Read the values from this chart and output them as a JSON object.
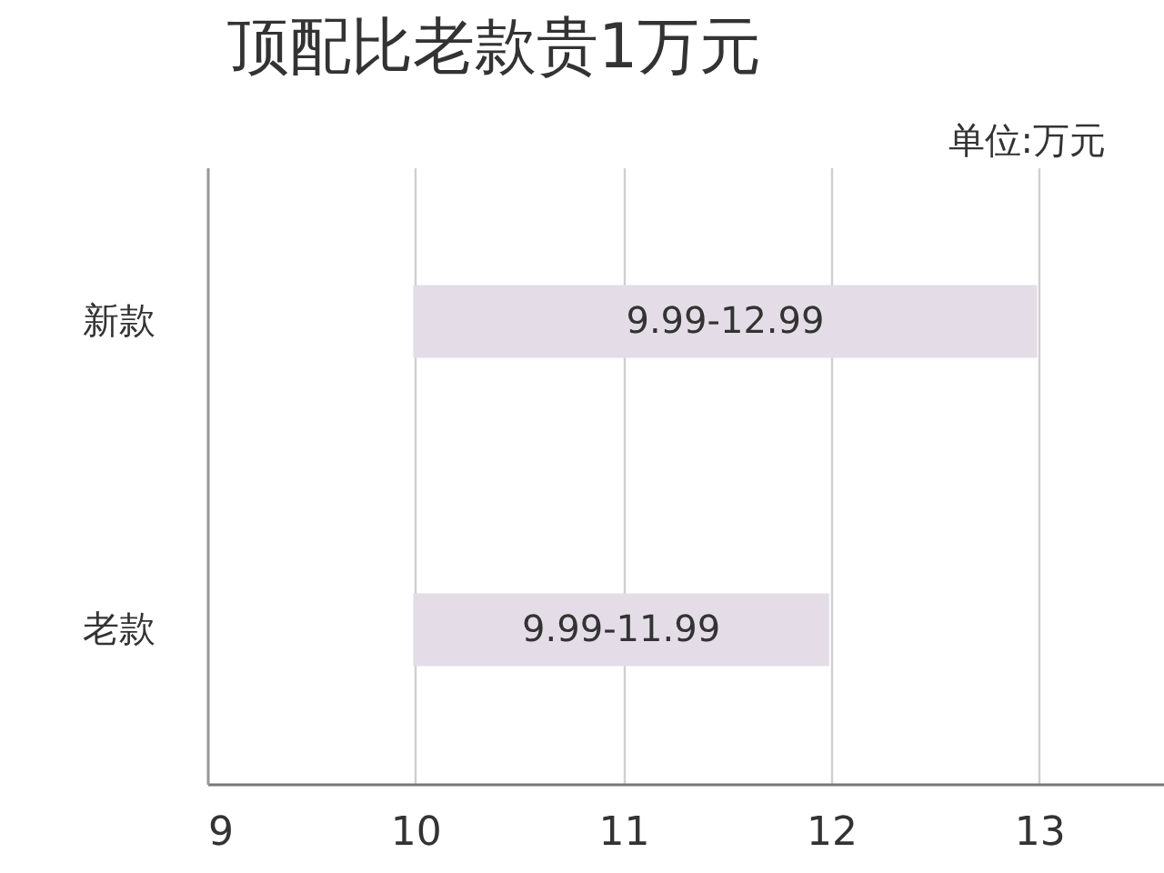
{
  "chart_data": {
    "type": "bar",
    "title": "顶配比老款贵1万元",
    "annotations": [
      "单位:万元"
    ],
    "orientation": "horizontal",
    "categories": [
      "新款",
      "老款"
    ],
    "base": [
      9.99,
      9.99
    ],
    "values": [
      3,
      2
    ],
    "color": "#e4dde7",
    "value_labels": [
      "9.99-12.99",
      "9.99-11.99"
    ],
    "xlim": [
      9,
      13.6
    ],
    "xticks": [
      9,
      10,
      11,
      12,
      13
    ],
    "grid": "x"
  }
}
